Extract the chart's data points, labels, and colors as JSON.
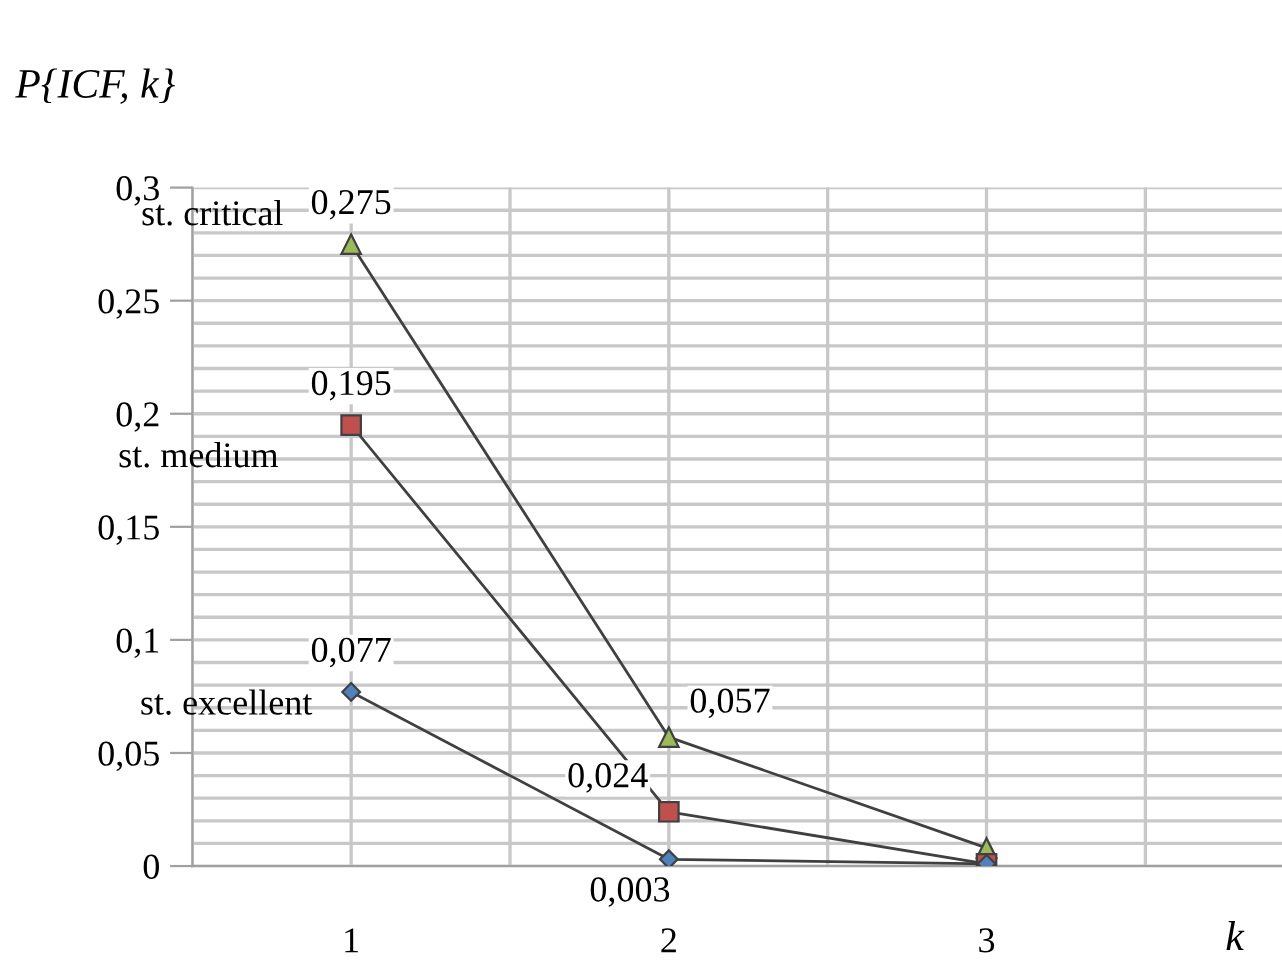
{
  "chart_data": {
    "type": "line",
    "title": "P{ICF, k}",
    "xlabel": "k",
    "categories": [
      "1",
      "2",
      "3"
    ],
    "series": [
      {
        "name": "st. critical",
        "color": "#9bbb59",
        "marker": "triangle",
        "values": [
          0.275,
          0.057,
          0.008
        ],
        "value_labels": [
          "0,275",
          "0,057",
          null
        ]
      },
      {
        "name": "st. medium",
        "color": "#c0504d",
        "marker": "square",
        "values": [
          0.195,
          0.024,
          0.001
        ],
        "value_labels": [
          "0,195",
          "0,024",
          null
        ]
      },
      {
        "name": "st. excellent",
        "color": "#4f81bd",
        "marker": "diamond",
        "values": [
          0.077,
          0.003,
          0.001
        ],
        "value_labels": [
          "0,077",
          "0,003",
          null
        ]
      }
    ],
    "ylim": [
      0,
      0.3
    ],
    "yticks": [
      {
        "value": 0,
        "label": "0"
      },
      {
        "value": 0.01,
        "label": null
      },
      {
        "value": 0.02,
        "label": null
      },
      {
        "value": 0.03,
        "label": null
      },
      {
        "value": 0.04,
        "label": null
      },
      {
        "value": 0.05,
        "label": "0,05"
      },
      {
        "value": 0.06,
        "label": null
      },
      {
        "value": 0.07,
        "label": null
      },
      {
        "value": 0.08,
        "label": null
      },
      {
        "value": 0.09,
        "label": null
      },
      {
        "value": 0.1,
        "label": "0,1"
      },
      {
        "value": 0.11,
        "label": null
      },
      {
        "value": 0.12,
        "label": null
      },
      {
        "value": 0.13,
        "label": null
      },
      {
        "value": 0.14,
        "label": null
      },
      {
        "value": 0.15,
        "label": "0,15"
      },
      {
        "value": 0.16,
        "label": null
      },
      {
        "value": 0.17,
        "label": null
      },
      {
        "value": 0.18,
        "label": null
      },
      {
        "value": 0.19,
        "label": null
      },
      {
        "value": 0.2,
        "label": "0,2"
      },
      {
        "value": 0.21,
        "label": null
      },
      {
        "value": 0.22,
        "label": null
      },
      {
        "value": 0.23,
        "label": null
      },
      {
        "value": 0.24,
        "label": null
      },
      {
        "value": 0.25,
        "label": "0,25"
      },
      {
        "value": 0.26,
        "label": null
      },
      {
        "value": 0.27,
        "label": null
      },
      {
        "value": 0.28,
        "label": null
      },
      {
        "value": 0.29,
        "label": null
      },
      {
        "value": 0.3,
        "label": "0,3"
      }
    ],
    "grid": true,
    "legend": false,
    "line_style": "solid"
  }
}
